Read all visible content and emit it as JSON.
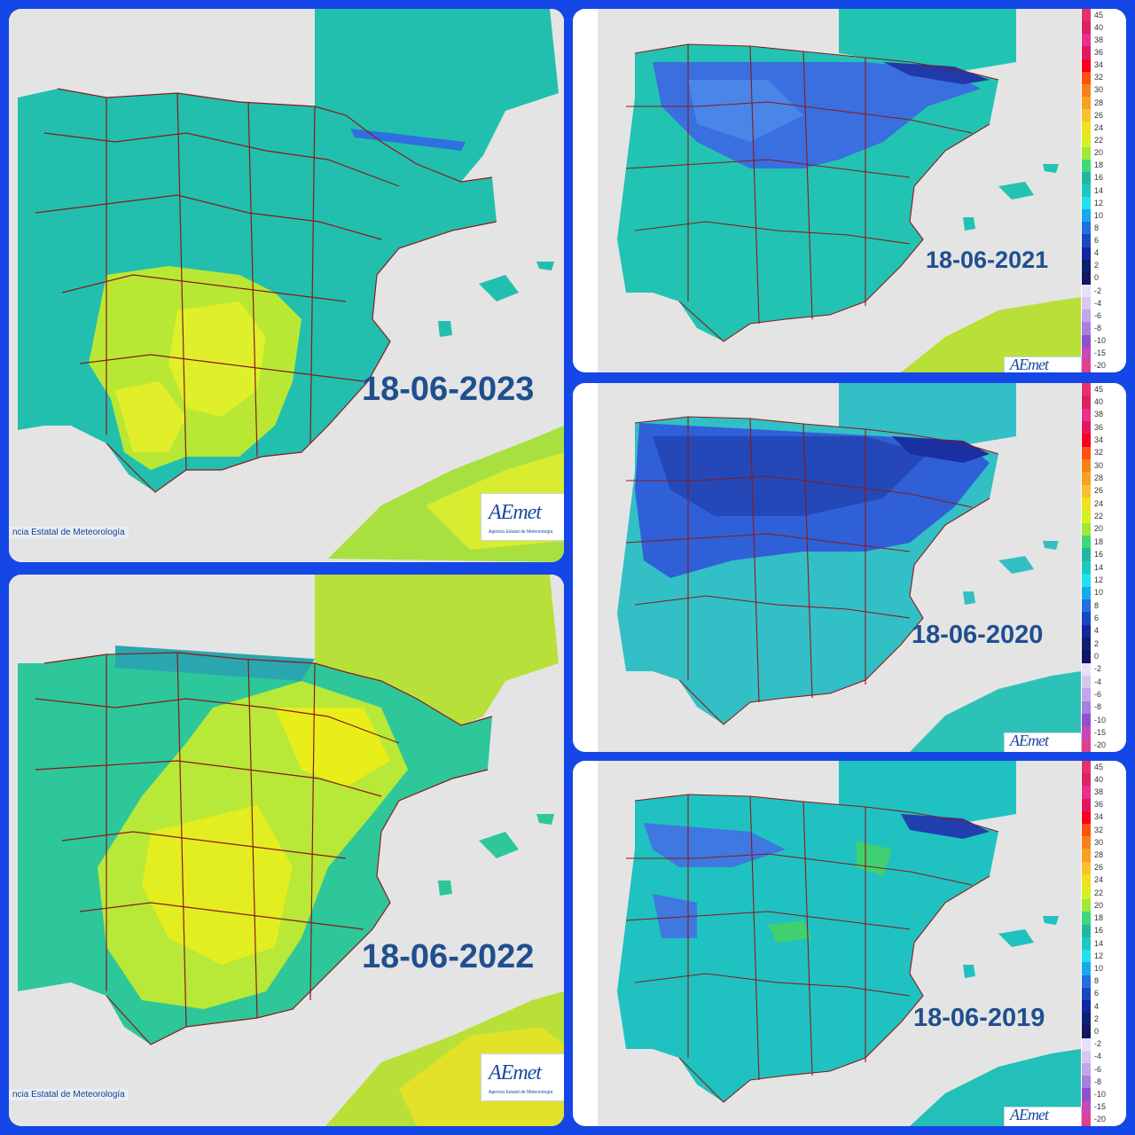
{
  "panels": [
    {
      "id": "p2023",
      "date": "18-06-2023",
      "credit": "ncia Estatal de Meteorología",
      "logo": "AEmet",
      "logo_sub": "Agencia Estatal de Meteorología",
      "has_legend": false,
      "fill": "#22bfae",
      "warm": "#d8f020"
    },
    {
      "id": "p2022",
      "date": "18-06-2022",
      "credit": "ncia Estatal de Meteorología",
      "logo": "AEmet",
      "logo_sub": "Agencia Estatal de Meteorología",
      "has_legend": false,
      "fill": "#2dc79a",
      "warm": "#e8ee1a"
    },
    {
      "id": "p2021",
      "date": "18-06-2021",
      "logo": "AEmet",
      "has_legend": true,
      "fill": "#22c3b2",
      "cold": "#3a6fe0"
    },
    {
      "id": "p2020",
      "date": "18-06-2020",
      "logo": "AEmet",
      "has_legend": true,
      "fill": "#33bfc6",
      "cold": "#3060d8"
    },
    {
      "id": "p2019",
      "date": "18-06-2019",
      "logo": "AEmet",
      "has_legend": true,
      "fill": "#1fc2c0",
      "cold": "#3f78e0"
    }
  ],
  "legend": {
    "labels": [
      "45",
      "40",
      "38",
      "36",
      "34",
      "32",
      "30",
      "28",
      "26",
      "24",
      "22",
      "20",
      "18",
      "16",
      "14",
      "12",
      "10",
      "8",
      "6",
      "4",
      "2",
      "0",
      "-2",
      "-4",
      "-6",
      "-8",
      "-10",
      "-15",
      "-20"
    ],
    "colors": [
      "#e8306c",
      "#d82460",
      "#e8308c",
      "#e01860",
      "#f80020",
      "#ff5010",
      "#f88018",
      "#f8a020",
      "#f8c030",
      "#f0e020",
      "#d8f020",
      "#a0e838",
      "#40d878",
      "#20b8a0",
      "#20c8c0",
      "#20e0f0",
      "#18a8f0",
      "#2070e0",
      "#1848c0",
      "#1028a0",
      "#102070",
      "#101860",
      "#e8e0f8",
      "#d8c8f0",
      "#c0a8e8",
      "#a880e0",
      "#9050d0",
      "#c848b8",
      "#e04090"
    ]
  },
  "colors": {
    "border": "#1447e6",
    "province_line": "#8a1a1a",
    "sea": "#e4e4e4",
    "date_text": "#1f4f8f"
  }
}
